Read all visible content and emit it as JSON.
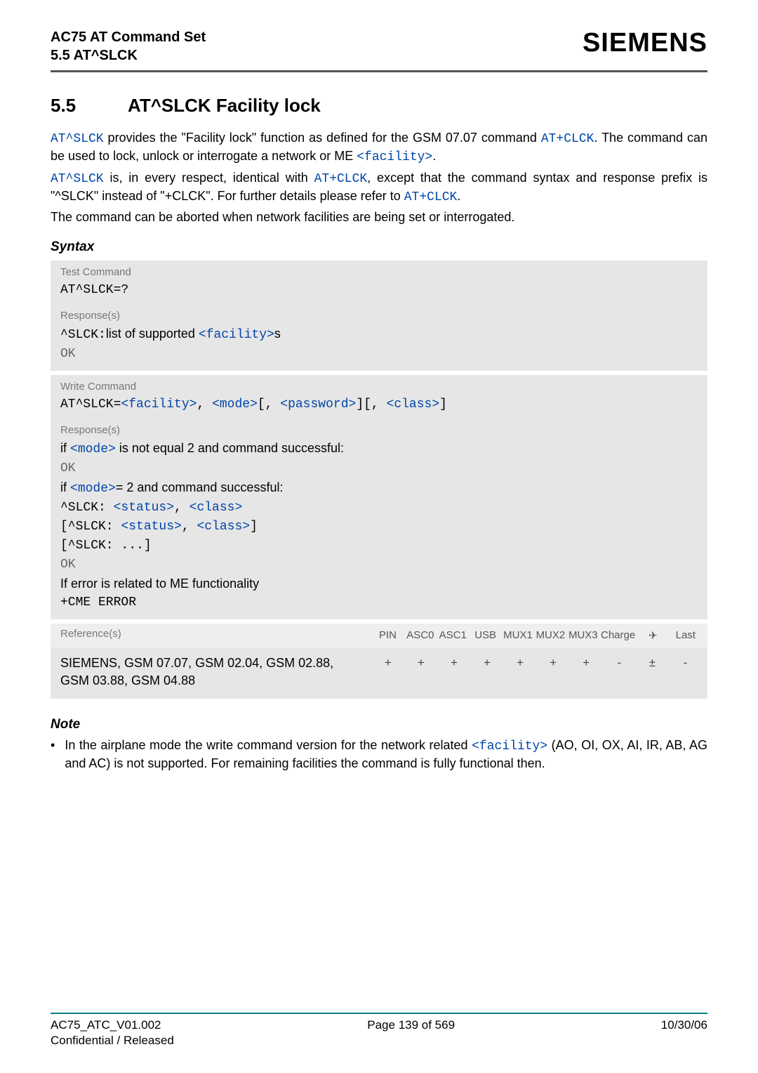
{
  "header": {
    "doc_title": "AC75 AT Command Set",
    "section_ref": "5.5 AT^SLCK",
    "brand": "SIEMENS"
  },
  "section": {
    "number": "5.5",
    "title": "AT^SLCK   Facility lock"
  },
  "intro": {
    "p1_pre": "AT^SLCK",
    "p1_mid": " provides the \"Facility lock\" function as defined for the GSM 07.07 command ",
    "p1_cmd": "AT+CLCK",
    "p1_post": ". The command can be used to lock, unlock or interrogate a network or ME ",
    "p1_fac": "<facility>",
    "p1_end": ".",
    "p2_pre": "AT^SLCK",
    "p2_mid1": " is, in every respect, identical with ",
    "p2_cmd": "AT+CLCK",
    "p2_mid2": ", except that the command syntax and response prefix is \"^SLCK\" instead of \"+CLCK\". For further details please refer to ",
    "p2_cmd2": "AT+CLCK",
    "p2_end": ".",
    "p3": "The command can be aborted when network facilities are being set or interrogated."
  },
  "syntax_label": "Syntax",
  "test_block": {
    "label": "Test Command",
    "cmd": "AT^SLCK=?",
    "resp_label": "Response(s)",
    "resp_pre": "^SLCK:",
    "resp_txt": "list of supported ",
    "resp_fac": "<facility>",
    "resp_suf": "s",
    "ok": "OK"
  },
  "write_block": {
    "label": "Write Command",
    "cmd_pre": "AT^SLCK=",
    "p_fac": "<facility>",
    "p_mode": "<mode>",
    "p_pwd": "<password>",
    "p_class": "<class>",
    "resp_label": "Response(s)",
    "l1_pre": "if ",
    "l1_mode": "<mode>",
    "l1_post": " is not equal 2 and command successful:",
    "ok1": "OK",
    "l2_pre": "if ",
    "l2_mode": "<mode>",
    "l2_post": "= 2 and command successful:",
    "r1_pre": "^SLCK: ",
    "r1_status": "<status>",
    "r1_class": "<class>",
    "r2_pre": "[^SLCK: ",
    "r2_status": "<status>",
    "r2_class": "<class>",
    "r2_suf": "]",
    "r3": "[^SLCK: ...]",
    "ok2": "OK",
    "err1": "If error is related to ME functionality",
    "err2": "+CME ERROR"
  },
  "ref": {
    "label": "Reference(s)",
    "cols": [
      "PIN",
      "ASC0",
      "ASC1",
      "USB",
      "MUX1",
      "MUX2",
      "MUX3",
      "Charge",
      "✈",
      "Last"
    ],
    "body": "SIEMENS, GSM 07.07, GSM 02.04, GSM 02.88, GSM 03.88, GSM 04.88",
    "vals": [
      "+",
      "+",
      "+",
      "+",
      "+",
      "+",
      "+",
      "-",
      "±",
      "-"
    ]
  },
  "note": {
    "label": "Note",
    "bullet": "•",
    "t1": "In the airplane mode the write command version for the network related ",
    "fac": "<facility>",
    "t2": " (AO, OI, OX, AI, IR, AB, AG and AC) is not supported. For remaining facilities the command is fully functional then."
  },
  "footer": {
    "left": "AC75_ATC_V01.002",
    "center": "Page 139 of 569",
    "right": "10/30/06",
    "l2": "Confidential / Released"
  }
}
